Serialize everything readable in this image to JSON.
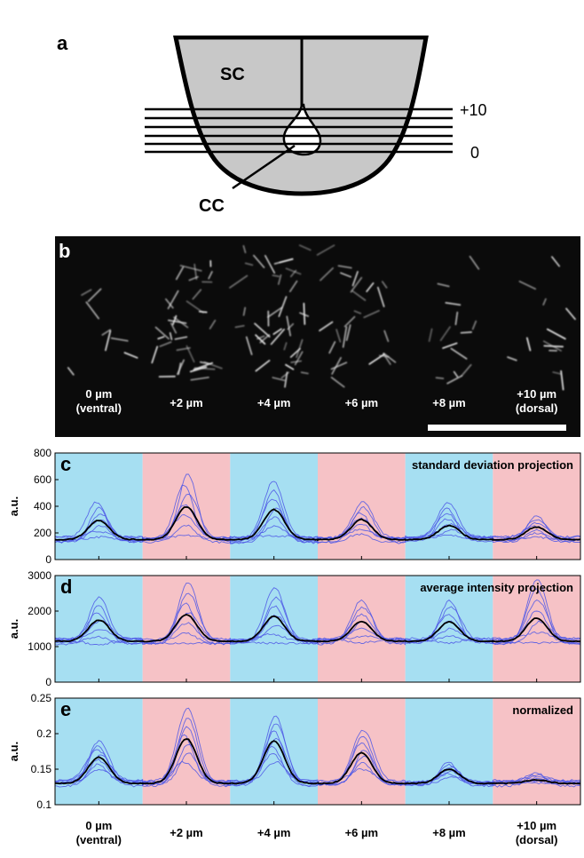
{
  "panel_a": {
    "letter": "a",
    "sc_label": "SC",
    "cc_label": "CC",
    "top_level": "+10",
    "bottom_level": "0"
  },
  "panel_b": {
    "letter": "b",
    "sections": [
      {
        "line1": "0 µm",
        "line2": "(ventral)"
      },
      {
        "line1": "+2 µm",
        "line2": ""
      },
      {
        "line1": "+4 µm",
        "line2": ""
      },
      {
        "line1": "+6 µm",
        "line2": ""
      },
      {
        "line1": "+8 µm",
        "line2": ""
      },
      {
        "line1": "+10 µm",
        "line2": "(dorsal)"
      }
    ]
  },
  "x_categories": [
    {
      "line1": "0 µm",
      "line2": "(ventral)"
    },
    {
      "line1": "+2 µm",
      "line2": ""
    },
    {
      "line1": "+4 µm",
      "line2": ""
    },
    {
      "line1": "+6 µm",
      "line2": ""
    },
    {
      "line1": "+8 µm",
      "line2": ""
    },
    {
      "line1": "+10 µm",
      "line2": "(dorsal)"
    }
  ],
  "colors": {
    "blue_band": "#a6dff2",
    "pink_band": "#f6c2c6",
    "thin_trace": "#4d57e6",
    "mean_trace": "#000000"
  },
  "chart_data": [
    {
      "letter": "c",
      "type": "line",
      "annotation": "standard deviation projection",
      "ylabel": "a.u.",
      "ylim": [
        0,
        800
      ],
      "yticks": [
        0,
        200,
        400,
        600,
        800
      ],
      "segments": 6,
      "mean_peaks": [
        295,
        395,
        375,
        300,
        255,
        245
      ],
      "baseline": 150,
      "trace_peak_spread": [
        [
          170,
          430
        ],
        [
          180,
          640
        ],
        [
          180,
          590
        ],
        [
          190,
          430
        ],
        [
          180,
          430
        ],
        [
          170,
          330
        ]
      ]
    },
    {
      "letter": "d",
      "type": "line",
      "annotation": "average intensity projection",
      "ylabel": "a.u.",
      "ylim": [
        0,
        3000
      ],
      "yticks": [
        0,
        1000,
        2000,
        3000
      ],
      "segments": 6,
      "mean_peaks": [
        1750,
        1900,
        1850,
        1700,
        1700,
        1800
      ],
      "baseline": 1150,
      "trace_peak_spread": [
        [
          1050,
          2400
        ],
        [
          1100,
          2800
        ],
        [
          1100,
          2650
        ],
        [
          1100,
          2300
        ],
        [
          1100,
          2300
        ],
        [
          1100,
          2900
        ]
      ]
    },
    {
      "letter": "e",
      "type": "line",
      "annotation": "normalized",
      "ylabel": "a.u.",
      "ylim": [
        0.1,
        0.25
      ],
      "yticks": [
        0.1,
        0.15,
        0.2,
        0.25
      ],
      "segments": 6,
      "mean_peaks": [
        0.167,
        0.193,
        0.19,
        0.173,
        0.15,
        0.135
      ],
      "baseline": 0.13,
      "trace_peak_spread": [
        [
          0.15,
          0.19
        ],
        [
          0.16,
          0.235
        ],
        [
          0.16,
          0.225
        ],
        [
          0.15,
          0.205
        ],
        [
          0.14,
          0.16
        ],
        [
          0.13,
          0.145
        ]
      ]
    }
  ]
}
